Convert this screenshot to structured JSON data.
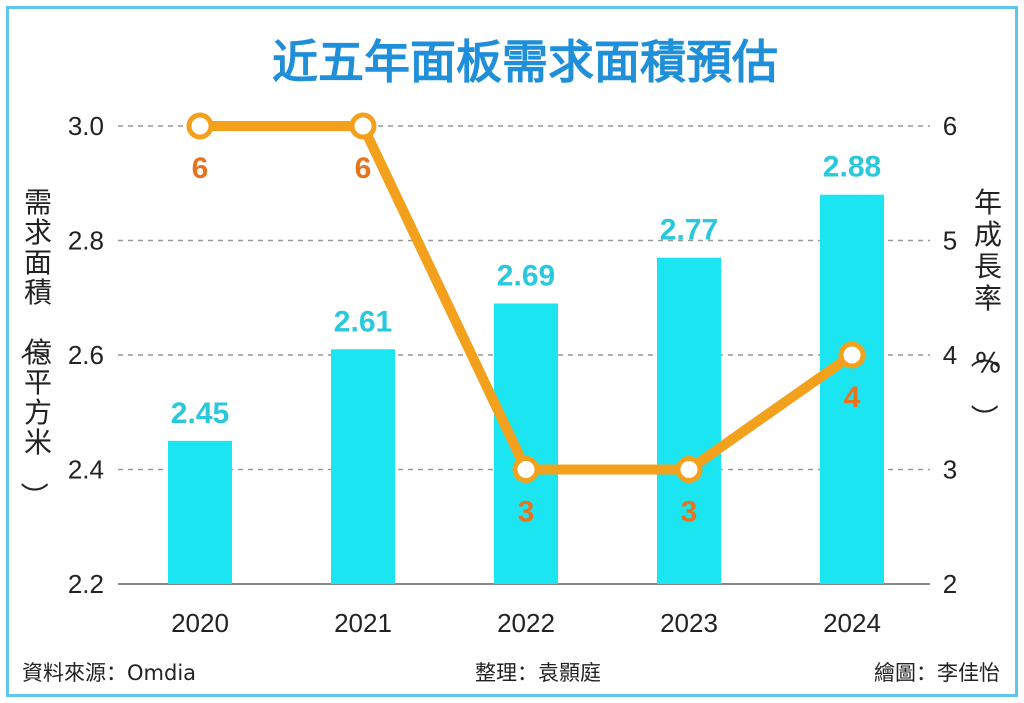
{
  "chart_data": {
    "type": "bar+line",
    "title": "近五年面板需求面積預估",
    "categories": [
      "2020",
      "2021",
      "2022",
      "2023",
      "2024"
    ],
    "series": [
      {
        "name": "需求面積（億平方米）",
        "type": "bar",
        "axis": "left",
        "values": [
          2.45,
          2.61,
          2.69,
          2.77,
          2.88
        ],
        "labels": [
          "2.45",
          "2.61",
          "2.69",
          "2.77",
          "2.88"
        ],
        "color": "#1ae5f0"
      },
      {
        "name": "年成長率（%）",
        "type": "line",
        "axis": "right",
        "values": [
          6,
          6,
          3,
          3,
          4
        ],
        "labels": [
          "6",
          "6",
          "3",
          "3",
          "4"
        ],
        "color": "#f3a11c"
      }
    ],
    "ylabel_left": "需求面積（億平方米）",
    "ylabel_right": "年成長率（%）",
    "ylim_left": [
      2.2,
      3.0
    ],
    "ylim_right": [
      2,
      6
    ],
    "yticks_left": [
      "2.2",
      "2.4",
      "2.6",
      "2.8",
      "3.0"
    ],
    "yticks_right": [
      "2",
      "3",
      "4",
      "5",
      "6"
    ],
    "grid": "dashed"
  },
  "footer": {
    "source": "資料來源：Omdia",
    "editor": "整理：袁顥庭",
    "graphics": "繪圖：李佳怡"
  },
  "colors": {
    "title": "#1e8fd8",
    "bar": "#1ae5f0",
    "bar_label": "#29c8dc",
    "line": "#f3a11c",
    "line_label": "#e8731e",
    "frame": "#5fc6ef"
  }
}
